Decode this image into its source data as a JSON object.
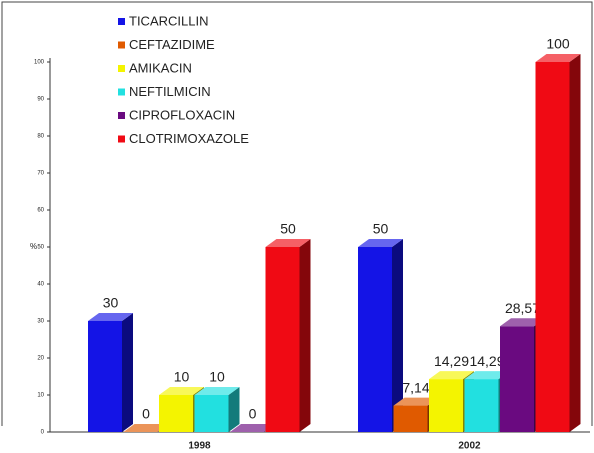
{
  "chart_data": {
    "type": "bar3d",
    "ylabel": "%",
    "categories": [
      "1998",
      "2002"
    ],
    "series": [
      {
        "name": "TICARCILLIN",
        "color": "#1414e6",
        "values": [
          30,
          50
        ]
      },
      {
        "name": "CEFTAZIDIME",
        "color": "#e05a00",
        "values": [
          0,
          7.14
        ],
        "value_labels": [
          "0",
          "7,14"
        ]
      },
      {
        "name": "AMIKACIN",
        "color": "#f4f400",
        "values": [
          10,
          14.29
        ],
        "value_labels": [
          "10",
          "14,29"
        ]
      },
      {
        "name": "NEFTILMICIN",
        "color": "#22e0e0",
        "values": [
          10,
          14.29
        ],
        "value_labels": [
          "10",
          "14,29"
        ]
      },
      {
        "name": "CIPROFLOXACIN",
        "color": "#6a0a80",
        "values": [
          0,
          28.57
        ],
        "value_labels": [
          "0",
          "28,57"
        ]
      },
      {
        "name": "CLOTRIMOXAZOLE",
        "color": "#f00a14",
        "values": [
          50,
          100
        ]
      }
    ],
    "ylim": [
      0,
      100
    ],
    "yticks": [
      0,
      10,
      20,
      30,
      40,
      50,
      60,
      70,
      80,
      90,
      100
    ],
    "legend": "top-left"
  }
}
